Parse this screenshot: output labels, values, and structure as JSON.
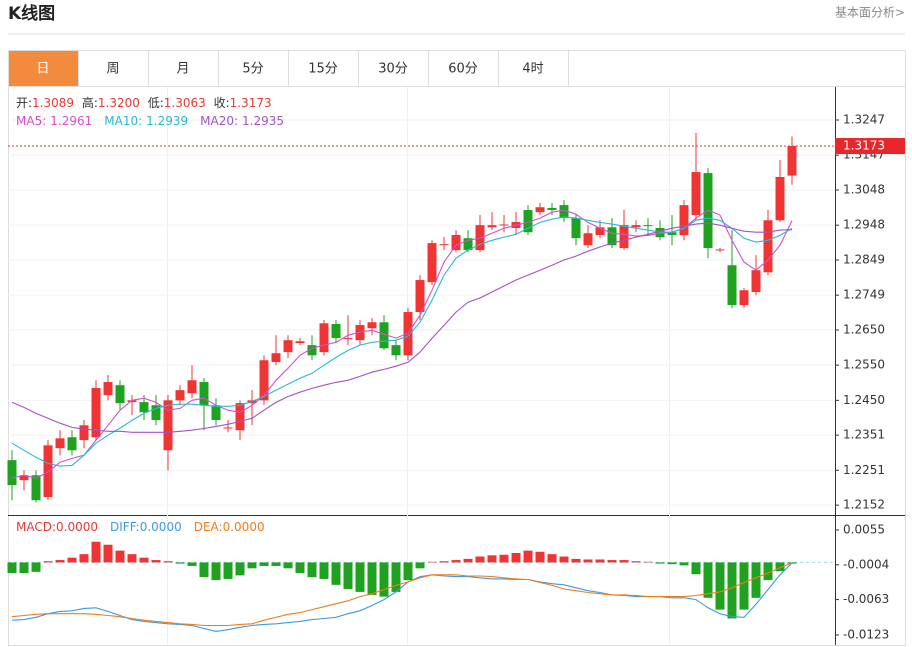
{
  "header": {
    "title": "K线图",
    "link": "基本面分析>"
  },
  "tabs": [
    "日",
    "周",
    "月",
    "5分",
    "15分",
    "30分",
    "60分",
    "4时"
  ],
  "active_tab": 0,
  "quote": [
    {
      "label": "开:",
      "value": "1.3089"
    },
    {
      "label": "高:",
      "value": "1.3200"
    },
    {
      "label": "低:",
      "value": "1.3063"
    },
    {
      "label": "收:",
      "value": "1.3173"
    }
  ],
  "chart_data": {
    "type": "candlestick",
    "up_color": "#f03434",
    "down_color": "#1fa21f",
    "ylim": [
      1.2124,
      1.3338
    ],
    "yticks": [
      1.2152,
      1.2251,
      1.2351,
      {
        "value": 1.245,
        "label": "1.2450"
      },
      {
        "value": 1.255,
        "label": "1.2550"
      },
      {
        "value": 1.265,
        "label": "1.2650"
      },
      1.2749,
      1.2849,
      1.2948,
      1.3048,
      1.3147,
      1.3247
    ],
    "grid": true,
    "current_price": 1.3173,
    "open": [
      1.228,
      1.2223,
      1.2237,
      1.2175,
      1.2314,
      1.2345,
      1.2337,
      1.2345,
      1.2465,
      1.2493,
      1.2445,
      1.2445,
      1.2436,
      1.2308,
      1.245,
      1.247,
      1.2502,
      1.2436,
      1.2371,
      1.2365,
      1.2442,
      1.245,
      1.2559,
      1.2587,
      1.2613,
      1.2607,
      1.2587,
      1.2667,
      1.2624,
      1.2621,
      1.2655,
      1.2672,
      1.2607,
      1.2578,
      1.2701,
      1.2786,
      1.2891,
      1.2877,
      1.2911,
      1.2877,
      1.2942,
      1.2948,
      1.294,
      1.2991,
      1.2985,
      1.2997,
      1.3005,
      1.2968,
      1.2891,
      1.292,
      1.2942,
      1.2883,
      1.2942,
      1.2948,
      1.294,
      1.2928,
      1.292,
      1.2977,
      1.3096,
      1.2877,
      1.2834,
      1.2721,
      1.2758,
      1.2814,
      1.2962,
      1.3089
    ],
    "close": [
      1.2209,
      1.2237,
      1.2166,
      1.2322,
      1.2342,
      1.2308,
      1.2379,
      1.2485,
      1.2502,
      1.2442,
      1.245,
      1.2416,
      1.2394,
      1.245,
      1.2479,
      1.2507,
      1.2436,
      1.2394,
      1.2373,
      1.2442,
      1.245,
      1.2564,
      1.2584,
      1.2621,
      1.2618,
      1.2578,
      1.2669,
      1.2627,
      1.2627,
      1.2664,
      1.2672,
      1.2598,
      1.2578,
      1.2701,
      1.2792,
      1.2897,
      1.2894,
      1.292,
      1.2877,
      1.2948,
      1.2948,
      1.295,
      1.2957,
      1.2928,
      1.2999,
      1.2991,
      1.2968,
      1.2911,
      1.2925,
      1.2942,
      1.2891,
      1.2948,
      1.2948,
      1.2946,
      1.2914,
      1.292,
      1.3005,
      1.3099,
      1.2883,
      1.2879,
      1.2721,
      1.2763,
      1.282,
      1.2962,
      1.3085,
      1.3173
    ],
    "high": [
      1.2308,
      1.2251,
      1.2251,
      1.2337,
      1.2365,
      1.2365,
      1.2394,
      1.2507,
      1.2522,
      1.2507,
      1.2465,
      1.2465,
      1.2465,
      1.2465,
      1.2493,
      1.255,
      1.2513,
      1.2456,
      1.2394,
      1.245,
      1.2479,
      1.2578,
      1.2635,
      1.2635,
      1.2627,
      1.2635,
      1.2678,
      1.2678,
      1.2692,
      1.2678,
      1.2684,
      1.2692,
      1.2621,
      1.2712,
      1.2806,
      1.2905,
      1.2914,
      1.2934,
      1.2934,
      1.2977,
      1.2985,
      1.2977,
      1.2985,
      1.3005,
      1.3011,
      1.3011,
      1.3019,
      1.2977,
      1.2948,
      1.2962,
      1.2968,
      1.2991,
      1.2962,
      1.2968,
      1.2962,
      1.2977,
      1.3019,
      1.321,
      1.311,
      1.2883,
      1.2934,
      1.2769,
      1.2863,
      1.2991,
      1.3133,
      1.32
    ],
    "low": [
      1.2166,
      1.2194,
      1.216,
      1.2166,
      1.2294,
      1.2294,
      1.2314,
      1.2337,
      1.245,
      1.2422,
      1.2408,
      1.2394,
      1.2379,
      1.2251,
      1.2436,
      1.2456,
      1.2365,
      1.2379,
      1.2359,
      1.2337,
      1.2379,
      1.2436,
      1.255,
      1.257,
      1.2607,
      1.2564,
      1.2578,
      1.2615,
      1.2607,
      1.2607,
      1.2635,
      1.2593,
      1.2564,
      1.2564,
      1.2678,
      1.2778,
      1.2877,
      1.2871,
      1.2871,
      1.2871,
      1.2934,
      1.2928,
      1.292,
      1.292,
      1.2977,
      1.2977,
      1.2957,
      1.2891,
      1.2883,
      1.2911,
      1.2883,
      1.2877,
      1.2928,
      1.292,
      1.2905,
      1.2891,
      1.2905,
      1.2962,
      1.2854,
      1.2871,
      1.2712,
      1.2712,
      1.2749,
      1.2806,
      1.2957,
      1.3063
    ],
    "ma": [
      {
        "name": "MA5:",
        "last": "1.2961",
        "color": "#d24fd2",
        "values": [
          1.2229,
          1.2237,
          1.2229,
          1.2246,
          1.2274,
          1.2285,
          1.2294,
          1.2337,
          1.2379,
          1.2422,
          1.245,
          1.2456,
          1.2444,
          1.2422,
          1.2427,
          1.245,
          1.2456,
          1.2436,
          1.2422,
          1.2416,
          1.2436,
          1.2464,
          1.2507,
          1.2541,
          1.2578,
          1.2598,
          1.2607,
          1.2615,
          1.2635,
          1.2644,
          1.2649,
          1.2638,
          1.2627,
          1.2641,
          1.2692,
          1.2763,
          1.2843,
          1.2891,
          1.2905,
          1.2911,
          1.2925,
          1.2939,
          1.2948,
          1.2956,
          1.2968,
          1.2985,
          1.2991,
          1.2979,
          1.2956,
          1.2939,
          1.2925,
          1.2922,
          1.2917,
          1.2919,
          1.2925,
          1.2928,
          1.2939,
          1.2968,
          1.2991,
          1.2977,
          1.2905,
          1.2843,
          1.282,
          1.2849,
          1.2891,
          1.2961
        ]
      },
      {
        "name": "MA10:",
        "last": "1.2939",
        "color": "#2ab8d6",
        "values": [
          1.2328,
          1.2308,
          1.2288,
          1.2271,
          1.2263,
          1.2265,
          1.2294,
          1.2328,
          1.2351,
          1.2371,
          1.2393,
          1.2413,
          1.2427,
          1.2436,
          1.2439,
          1.2439,
          1.2436,
          1.2433,
          1.2433,
          1.2436,
          1.2447,
          1.2461,
          1.2479,
          1.2496,
          1.2513,
          1.2527,
          1.255,
          1.2572,
          1.2592,
          1.2607,
          1.2615,
          1.2618,
          1.2621,
          1.2632,
          1.2672,
          1.2735,
          1.2806,
          1.2854,
          1.2877,
          1.2894,
          1.2905,
          1.2914,
          1.2922,
          1.2939,
          1.2956,
          1.2965,
          1.2971,
          1.2968,
          1.2962,
          1.2956,
          1.2951,
          1.2945,
          1.2939,
          1.2934,
          1.2928,
          1.2928,
          1.2939,
          1.2962,
          1.2968,
          1.2962,
          1.2939,
          1.2911,
          1.29,
          1.2905,
          1.2919,
          1.2939
        ]
      },
      {
        "name": "MA20:",
        "last": "1.2935",
        "color": "#a452c4",
        "values": [
          1.2444,
          1.243,
          1.2413,
          1.2399,
          1.2385,
          1.2373,
          1.2368,
          1.2365,
          1.2362,
          1.2362,
          1.2359,
          1.2359,
          1.2359,
          1.2359,
          1.2362,
          1.2365,
          1.237,
          1.2376,
          1.2382,
          1.239,
          1.2399,
          1.2422,
          1.2444,
          1.2461,
          1.2473,
          1.2484,
          1.2493,
          1.2501,
          1.2507,
          1.2518,
          1.253,
          1.2538,
          1.2547,
          1.2558,
          1.2587,
          1.2626,
          1.2663,
          1.2701,
          1.2729,
          1.2741,
          1.2758,
          1.2775,
          1.2792,
          1.2806,
          1.282,
          1.2834,
          1.2849,
          1.286,
          1.2874,
          1.2886,
          1.2897,
          1.2905,
          1.2914,
          1.2922,
          1.2931,
          1.2939,
          1.2945,
          1.2951,
          1.2954,
          1.2948,
          1.2939,
          1.2931,
          1.2928,
          1.2928,
          1.2934,
          1.2935
        ]
      }
    ],
    "macd": {
      "ylim": [
        -0.014,
        0.0077
      ],
      "yticks": [
        0.0055,
        -0.0004,
        -0.0063,
        -0.0123
      ],
      "labels": [
        {
          "name": "MACD:",
          "value": "0.0000",
          "color": "#e53935"
        },
        {
          "name": "DIFF:",
          "value": "0.0000",
          "color": "#3c9be0"
        },
        {
          "name": "DEA:",
          "value": "0.0000",
          "color": "#f07c1e"
        }
      ],
      "hist": [
        -0.0018,
        -0.0018,
        -0.0016,
        0.0002,
        0.0004,
        0.0008,
        0.0014,
        0.0035,
        0.003,
        0.002,
        0.0014,
        0.0008,
        0.0004,
        0.0002,
        -0.0002,
        -0.0006,
        -0.0025,
        -0.003,
        -0.0028,
        -0.0022,
        -0.001,
        -0.0006,
        -0.0006,
        -0.001,
        -0.0018,
        -0.0025,
        -0.0028,
        -0.0038,
        -0.0045,
        -0.005,
        -0.0055,
        -0.0058,
        -0.005,
        -0.003,
        -0.001,
        0.0001,
        0.0002,
        0.0004,
        0.0006,
        0.001,
        0.0012,
        0.0013,
        0.0016,
        0.002,
        0.0018,
        0.0014,
        0.001,
        0.0006,
        0.0005,
        0.0005,
        0.0004,
        0.0004,
        0.0002,
        0.0001,
        -0.0002,
        -0.0003,
        -0.0005,
        -0.002,
        -0.006,
        -0.008,
        -0.0095,
        -0.008,
        -0.006,
        -0.003,
        -0.0015,
        -0.0002
      ],
      "lines": [
        {
          "color": "#3c9be0",
          "values": [
            -0.0098,
            -0.0097,
            -0.0093,
            -0.0087,
            -0.0083,
            -0.0082,
            -0.0078,
            -0.0077,
            -0.0083,
            -0.009,
            -0.0097,
            -0.01,
            -0.0102,
            -0.0104,
            -0.0105,
            -0.0107,
            -0.0112,
            -0.0117,
            -0.0114,
            -0.011,
            -0.0107,
            -0.0105,
            -0.0104,
            -0.0102,
            -0.01,
            -0.0097,
            -0.0095,
            -0.0093,
            -0.0087,
            -0.0082,
            -0.0073,
            -0.0063,
            -0.005,
            -0.0033,
            -0.0024,
            -0.0021,
            -0.0023,
            -0.0024,
            -0.0024,
            -0.0026,
            -0.0028,
            -0.0028,
            -0.0029,
            -0.0029,
            -0.0033,
            -0.0036,
            -0.0038,
            -0.0043,
            -0.0048,
            -0.0051,
            -0.0055,
            -0.0056,
            -0.0058,
            -0.0058,
            -0.0058,
            -0.006,
            -0.006,
            -0.0063,
            -0.0077,
            -0.0087,
            -0.0092,
            -0.0093,
            -0.0071,
            -0.0046,
            -0.0021,
            -0.0001
          ]
        },
        {
          "color": "#f07c1e",
          "values": [
            -0.0092,
            -0.009,
            -0.0088,
            -0.0087,
            -0.0087,
            -0.0087,
            -0.0087,
            -0.0088,
            -0.009,
            -0.0092,
            -0.0095,
            -0.0098,
            -0.01,
            -0.0102,
            -0.0104,
            -0.0105,
            -0.0107,
            -0.0107,
            -0.0107,
            -0.0105,
            -0.0104,
            -0.0098,
            -0.0093,
            -0.0088,
            -0.0085,
            -0.008,
            -0.0075,
            -0.007,
            -0.0065,
            -0.0058,
            -0.0053,
            -0.0046,
            -0.0039,
            -0.0033,
            -0.0026,
            -0.0021,
            -0.0021,
            -0.0021,
            -0.0023,
            -0.0023,
            -0.0024,
            -0.0026,
            -0.0028,
            -0.0029,
            -0.0034,
            -0.0039,
            -0.0045,
            -0.0048,
            -0.0051,
            -0.0053,
            -0.0055,
            -0.0055,
            -0.0056,
            -0.0058,
            -0.0058,
            -0.0058,
            -0.0058,
            -0.0056,
            -0.0053,
            -0.005,
            -0.0043,
            -0.0034,
            -0.0026,
            -0.0018,
            -0.0009,
            -0.0001
          ]
        }
      ]
    }
  }
}
